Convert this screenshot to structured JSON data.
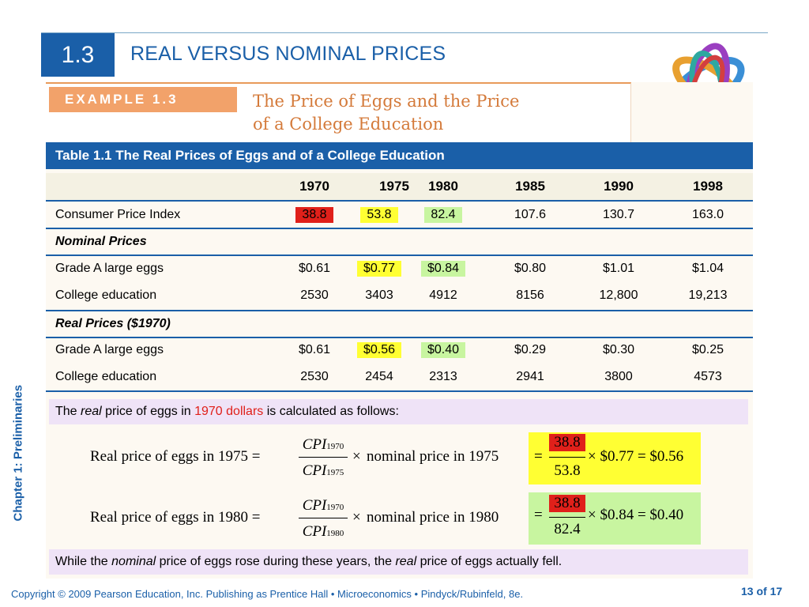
{
  "section": "1.3",
  "title": "REAL VERSUS NOMINAL PRICES",
  "side_label": "Chapter 1:  Preliminaries",
  "example": {
    "tab": "EXAMPLE 1.3",
    "title_line1": "The Price of Eggs and the Price",
    "title_line2": "of a College Education"
  },
  "table": {
    "caption": "Table 1.1  The Real Prices of Eggs and of a College Education",
    "years": [
      "1970",
      "1975",
      "1980",
      "1985",
      "1990",
      "1998"
    ],
    "cpi": {
      "label": "Consumer Price Index",
      "values": [
        "38.8",
        "53.8",
        "82.4",
        "107.6",
        "130.7",
        "163.0"
      ]
    },
    "nominal_header": "Nominal Prices",
    "nominal": [
      {
        "label": "Grade A large eggs",
        "values": [
          "$0.61",
          "$0.77",
          "$0.84",
          "$0.80",
          "$1.01",
          "$1.04"
        ]
      },
      {
        "label": "College education",
        "values": [
          "2530",
          "3403",
          "4912",
          "8156",
          "12,800",
          "19,213"
        ]
      }
    ],
    "real_header": "Real Prices ($1970)",
    "real": [
      {
        "label": "Grade A large eggs",
        "values": [
          "$0.61",
          "$0.56",
          "$0.40",
          "$0.29",
          "$0.30",
          "$0.25"
        ]
      },
      {
        "label": "College education",
        "values": [
          "2530",
          "2454",
          "2313",
          "2941",
          "3800",
          "4573"
        ]
      }
    ]
  },
  "note": {
    "pre": "The ",
    "italic": "real",
    "mid": " price of eggs in ",
    "red": "1970 dollars",
    "post": " is calculated as follows:"
  },
  "eq1": {
    "lhs": "Real price of eggs in 1975 =",
    "num": "CPI",
    "num_sub": "1970",
    "den": "CPI",
    "den_sub": "1975",
    "times": "×",
    "rhs": "nominal price in 1975",
    "eq": "=",
    "top": "38.8",
    "bottom": "53.8",
    "calc": "× $0.77 = $0.56"
  },
  "eq2": {
    "lhs": "Real price of eggs in 1980 =",
    "num": "CPI",
    "num_sub": "1970",
    "den": "CPI",
    "den_sub": "1980",
    "times": "×",
    "rhs": "nominal price in 1980",
    "eq": "=",
    "top": "38.8",
    "bottom": "82.4",
    "calc": "× $0.84 = $0.40"
  },
  "conclusion": {
    "pre": "While the ",
    "italic1": "nominal",
    "mid": " price of eggs rose during these years, the ",
    "italic2": "real",
    "post": " price of eggs actually fell."
  },
  "footer": "Copyright © 2009 Pearson Education, Inc. Publishing as Prentice Hall  •  Microeconomics  •  Pindyck/Rubinfeld, 8e.",
  "page": {
    "current": "13",
    "sep": " of ",
    "total": "17"
  },
  "colors": {
    "blue": "#1a5fa8",
    "red_highlight": "#e0201a",
    "yellow_highlight": "#ffff33",
    "green_highlight": "#c8f5a0",
    "note_bg": "#efe3f7",
    "orange": "#f2a26a"
  }
}
